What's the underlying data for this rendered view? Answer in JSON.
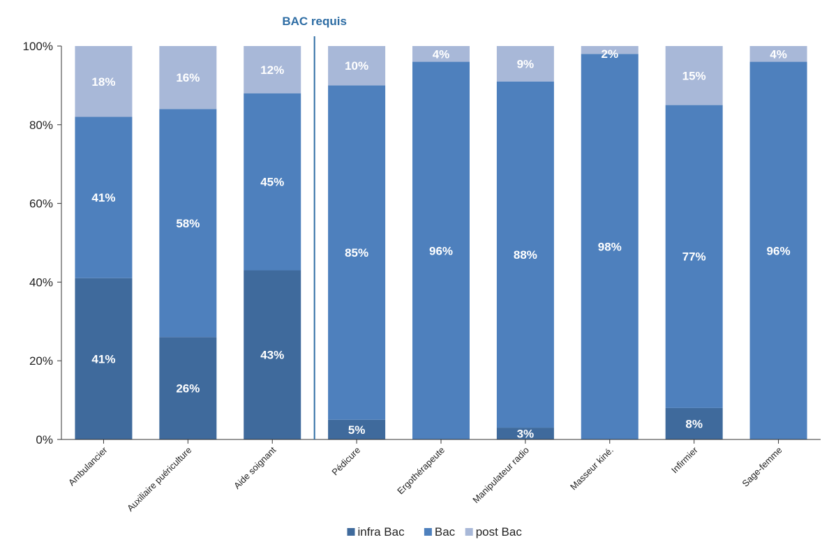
{
  "chart_data": {
    "type": "bar",
    "stacked": true,
    "categories": [
      "Ambulancier",
      "Auxiliaire puériculture",
      "Aide soignant",
      "Pédicure",
      "Ergothérapeute",
      "Manipulateur radio",
      "Masseur kiné.",
      "Infirmier",
      "Sage-femme"
    ],
    "series": [
      {
        "name": "infra Bac",
        "color": "#3f6a9c",
        "values": [
          41,
          26,
          43,
          5,
          0,
          3,
          0,
          8,
          0
        ],
        "labels": [
          "41%",
          "26%",
          "43%",
          "5%",
          "",
          "3%",
          "",
          "8%",
          ""
        ]
      },
      {
        "name": "Bac",
        "color": "#4e80bd",
        "values": [
          41,
          58,
          45,
          85,
          96,
          88,
          98,
          77,
          96
        ],
        "labels": [
          "41%",
          "58%",
          "45%",
          "85%",
          "96%",
          "88%",
          "98%",
          "77%",
          "96%"
        ]
      },
      {
        "name": "post Bac",
        "color": "#a8b8d8",
        "values": [
          18,
          16,
          12,
          10,
          4,
          9,
          2,
          15,
          4
        ],
        "labels": [
          "18%",
          "16%",
          "12%",
          "10%",
          "4%",
          "9%",
          "2%",
          "15%",
          "4%"
        ]
      }
    ],
    "ylim": [
      0,
      100
    ],
    "yticks": [
      "0%",
      "20%",
      "40%",
      "60%",
      "80%",
      "100%"
    ],
    "ytick_values": [
      0,
      20,
      40,
      60,
      80,
      100
    ],
    "annotation": {
      "text": "BAC requis",
      "color": "#2e6da4",
      "divider_after_category": 2
    },
    "legend": {
      "position": "bottom-center"
    },
    "grid": false
  }
}
